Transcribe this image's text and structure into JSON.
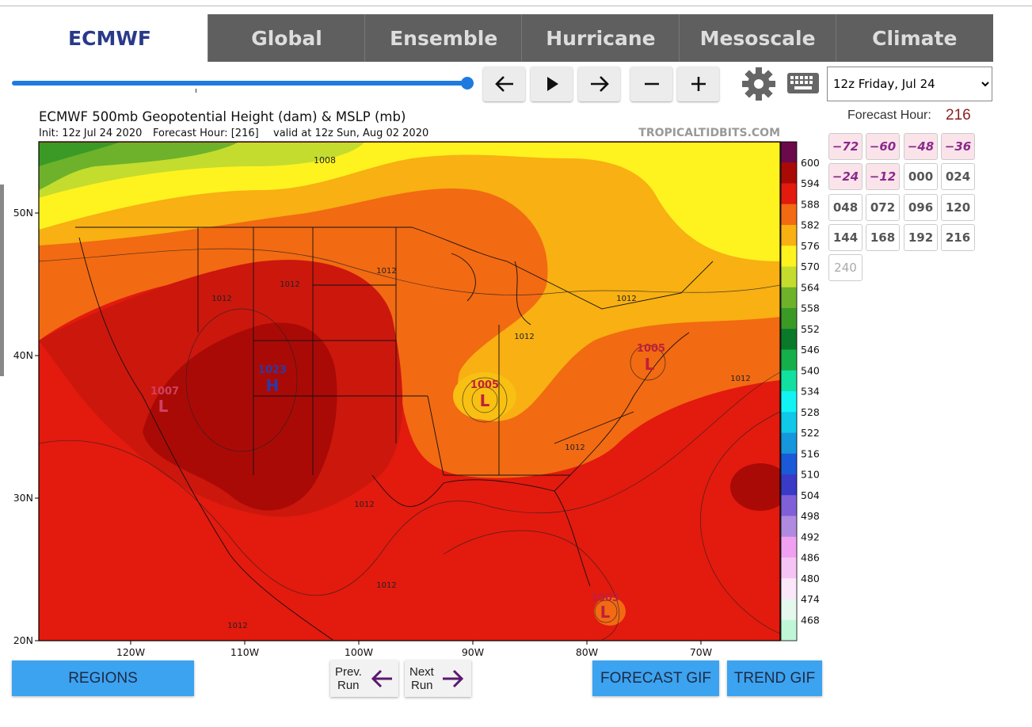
{
  "tabs": {
    "active": "ECMWF",
    "items": [
      "Global",
      "Ensemble",
      "Hurricane",
      "Mesoscale",
      "Climate"
    ]
  },
  "run_select": "12z Friday, Jul 24",
  "forecast_hour": {
    "label": "Forecast Hour:",
    "value": "216",
    "hours": [
      "−72",
      "−60",
      "−48",
      "−36",
      "−24",
      "−12",
      "000",
      "024",
      "048",
      "072",
      "096",
      "120",
      "144",
      "168",
      "192",
      "216",
      "240"
    ]
  },
  "map": {
    "title": "ECMWF 500mb Geopotential Height (dam) & MSLP (mb)",
    "init": "Init: 12z Jul 24 2020",
    "forecast_hour": "Forecast Hour: [216]",
    "valid": "valid at 12z Sun, Aug 02 2020",
    "source": "TROPICALTIDBITS.COM",
    "lat_labels": [
      "50N",
      "40N",
      "30N",
      "20N"
    ],
    "lon_labels": [
      "120W",
      "110W",
      "100W",
      "90W",
      "80W",
      "70W"
    ],
    "labels": [
      "1008",
      "1012",
      "1012",
      "1012",
      "1012",
      "1012",
      "1012",
      "1012",
      "1012",
      "1012",
      "1012",
      "1023",
      "H",
      "1005",
      "L",
      "1007",
      "L",
      "1005",
      "L",
      "1003",
      "L"
    ],
    "colorbar": {
      "labels": [
        "600",
        "594",
        "588",
        "582",
        "576",
        "570",
        "564",
        "558",
        "552",
        "546",
        "540",
        "534",
        "528",
        "522",
        "516",
        "510",
        "504",
        "498",
        "492",
        "486",
        "480",
        "474",
        "468"
      ],
      "colors": [
        "#6a0a4a",
        "#aa0a06",
        "#e31a0e",
        "#f26a12",
        "#f8b012",
        "#fff31f",
        "#c4dc2e",
        "#6db22a",
        "#3a9a25",
        "#0a7a2a",
        "#16b04a",
        "#12e0a0",
        "#12f4f4",
        "#10c8e8",
        "#1696dc",
        "#1a5ad8",
        "#3a3ac8",
        "#8060d8",
        "#b08ae0",
        "#f0a0f0",
        "#f6c4f4",
        "#fae8fa",
        "#e4f8ee",
        "#c0f6d8"
      ]
    }
  },
  "buttons": {
    "regions": "REGIONS",
    "prev_run": [
      "Prev.",
      "Run"
    ],
    "next_run": [
      "Next",
      "Run"
    ],
    "forecast_gif": "FORECAST GIF",
    "trend_gif": "TREND GIF"
  }
}
